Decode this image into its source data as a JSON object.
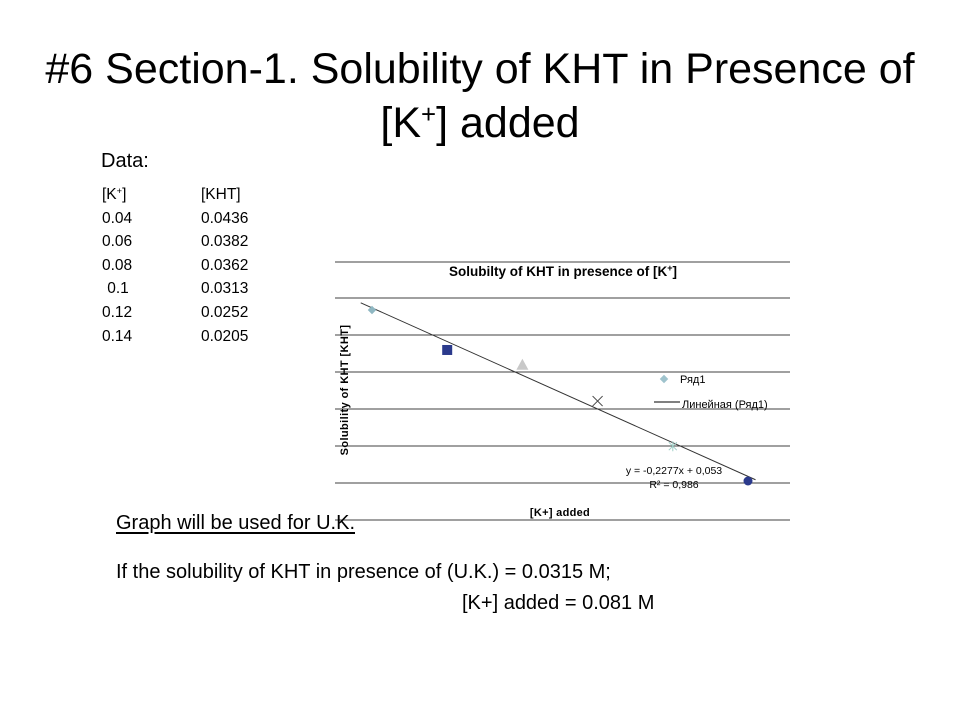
{
  "slide": {
    "title_main": "#6 Section-1. Solubility of KHT in Presence of [K",
    "title_sup": "+",
    "title_end": "] added",
    "data_label": "Data:",
    "table": {
      "headers": [
        {
          "main": "[K",
          "sup": "+",
          "end": "]"
        },
        {
          "main": "[KHT]"
        }
      ],
      "rows": [
        [
          "0.04",
          "0.0436"
        ],
        [
          "0.06",
          "0.0382"
        ],
        [
          "0.08",
          "0.0362"
        ],
        [
          "0.1",
          "0.0313"
        ],
        [
          "0.12",
          "0.0252"
        ],
        [
          "0.14",
          "0.0205"
        ]
      ]
    },
    "note1": "Graph will be used for U.K.",
    "note2": "If the solubility of KHT in presence of (U.K.)  = 0.0315 M;",
    "note3": "[K+] added = 0.081 M"
  },
  "chart_data": {
    "type": "scatter",
    "title_main": "Solubilty of KHT in presence of [K",
    "title_sup": "+",
    "title_end": "]",
    "xlabel": "[K+] added",
    "ylabel": "Solubility of KHT [KHT]",
    "grid": true,
    "legend_position": "right",
    "legend": [
      "Ряд1",
      "Линейная  (Ряд1)"
    ],
    "series": [
      {
        "name": "Ряд1",
        "x": [
          0.04,
          0.06,
          0.08,
          0.1,
          0.12,
          0.14
        ],
        "y": [
          0.0436,
          0.0382,
          0.0362,
          0.0313,
          0.0252,
          0.0205
        ],
        "point_colors": [
          "#8fb7c2",
          "#2b3a8c",
          "#c8c8c8",
          "#444444",
          "#9fcfc7",
          "#2b3a8c"
        ],
        "point_symbols": [
          "diamond",
          "square",
          "triangle",
          "x",
          "asterisk",
          "circle"
        ]
      }
    ],
    "trendline": {
      "type": "linear",
      "name": "Линейная  (Ряд1)",
      "slope": -0.2277,
      "intercept": 0.053,
      "equation": "y = -0,2277x + 0,053",
      "r_squared": "R² = 0,986"
    }
  }
}
